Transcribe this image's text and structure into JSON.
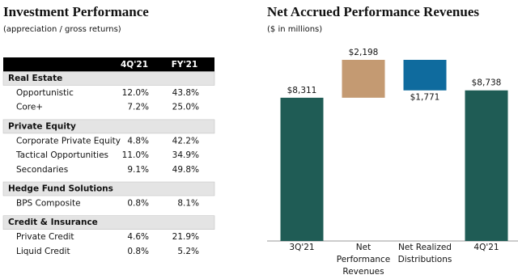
{
  "left": {
    "title": "Investment Performance",
    "subtitle": "(appreciation / gross returns)",
    "table": {
      "columns": [
        "4Q'21",
        "FY'21"
      ],
      "groups": [
        {
          "name": "Real Estate",
          "rows": [
            [
              "Opportunistic",
              "12.0%",
              "43.8%"
            ],
            [
              "Core+",
              "7.2%",
              "25.0%"
            ]
          ]
        },
        {
          "name": "Private Equity",
          "rows": [
            [
              "Corporate Private Equity",
              "4.8%",
              "42.2%"
            ],
            [
              "Tactical Opportunities",
              "11.0%",
              "34.9%"
            ],
            [
              "Secondaries",
              "9.1%",
              "49.8%"
            ]
          ]
        },
        {
          "name": "Hedge Fund Solutions",
          "rows": [
            [
              "BPS Composite",
              "0.8%",
              "8.1%"
            ]
          ]
        },
        {
          "name": "Credit & Insurance",
          "rows": [
            [
              "Private Credit",
              "4.6%",
              "21.9%"
            ],
            [
              "Liquid Credit",
              "0.8%",
              "5.2%"
            ]
          ]
        }
      ]
    }
  },
  "chart_data": {
    "type": "waterfall",
    "title": "Net Accrued Performance Revenues",
    "subtitle": "($ in millions)",
    "categories": [
      "3Q'21",
      "Net Performance Revenues",
      "Net Realized Distributions",
      "4Q'21"
    ],
    "values": [
      8311,
      2198,
      -1771,
      8738
    ],
    "value_labels": [
      "$8,311",
      "$2,198",
      "$1,771",
      "$8,738"
    ],
    "bar_kinds": [
      "total",
      "delta",
      "delta",
      "total"
    ],
    "colors": [
      "#1f5c55",
      "#c49a72",
      "#0f6b9e",
      "#1f5c55"
    ]
  }
}
